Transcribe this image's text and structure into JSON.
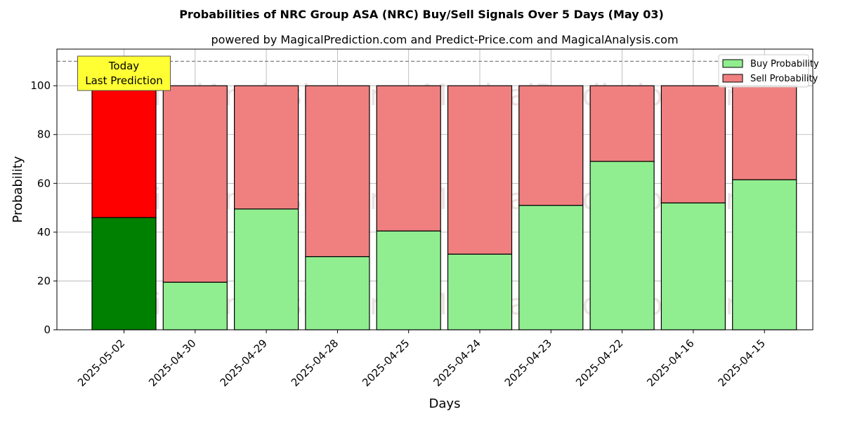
{
  "chart_data": {
    "type": "bar",
    "stacked": true,
    "title": "Probabilities of NRC Group ASA (NRC) Buy/Sell Signals Over 5 Days (May 03)",
    "subtitle": "powered by MagicalPrediction.com and Predict-Price.com and MagicalAnalysis.com",
    "xlabel": "Days",
    "ylabel": "Probability",
    "ylim": [
      0,
      115
    ],
    "yticks": [
      0,
      20,
      40,
      60,
      80,
      100
    ],
    "grid": true,
    "legend_position": "top-right",
    "reference_line": 110,
    "categories": [
      "2025-05-02",
      "2025-04-30",
      "2025-04-29",
      "2025-04-28",
      "2025-04-25",
      "2025-04-24",
      "2025-04-23",
      "2025-04-22",
      "2025-04-16",
      "2025-04-15"
    ],
    "series": [
      {
        "name": "Buy Probability",
        "values": [
          46,
          19.5,
          49.5,
          30,
          40.5,
          31,
          51,
          69,
          52,
          61.5
        ],
        "color": "#90ee90",
        "highlight_color": "#008000"
      },
      {
        "name": "Sell Probability",
        "values": [
          54,
          80.5,
          50.5,
          70,
          59.5,
          69,
          49,
          31,
          48,
          38.5
        ],
        "color": "#f08080",
        "highlight_color": "#ff0000"
      }
    ],
    "annotation": {
      "lines": [
        "Today",
        "Last Prediction"
      ],
      "category": "2025-05-02",
      "color": "#ffff33"
    },
    "watermarks": [
      "MagicalAnalysis.com",
      "MagicalPrediction.com"
    ]
  }
}
